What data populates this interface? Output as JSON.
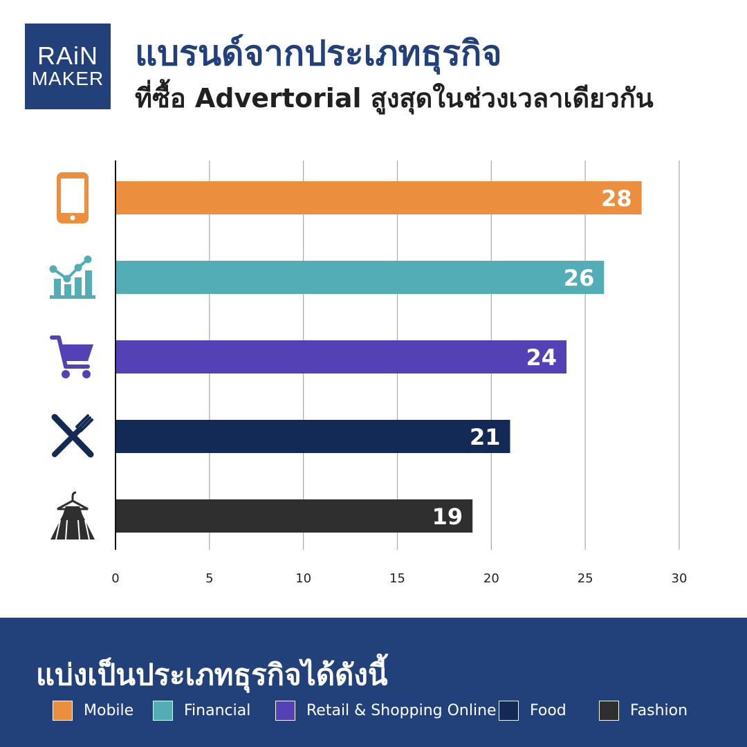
{
  "logo": {
    "line1": "RAiN",
    "line2": "MAKER"
  },
  "header": {
    "title": "แบรนด์จากประเภทธุรกิจ",
    "subtitle": "ที่ซื้อ Advertorial สูงสุดในช่วงเวลาเดียวกัน"
  },
  "chart_data": {
    "type": "bar",
    "orientation": "horizontal",
    "categories": [
      "Mobile",
      "Financial",
      "Retail & Shopping Online",
      "Food",
      "Fashion"
    ],
    "values": [
      28,
      26,
      24,
      21,
      19
    ],
    "value_labels": [
      "28",
      "26",
      "24",
      "21",
      "19"
    ],
    "colors": [
      "#eb8f3f",
      "#53adb6",
      "#5541b6",
      "#132a57",
      "#2f2f2f"
    ],
    "icons": [
      "mobile-phone-icon",
      "financial-chart-icon",
      "shopping-cart-icon",
      "fork-knife-icon",
      "dress-hanger-icon"
    ],
    "xlim": [
      0,
      30
    ],
    "xticks": [
      0,
      5,
      10,
      15,
      20,
      25,
      30
    ],
    "grid": true
  },
  "footer": {
    "title": "แบ่งเป็นประเภทธุรกิจได้ดังนี้",
    "legend": [
      {
        "label": "Mobile",
        "color": "#eb8f3f"
      },
      {
        "label": "Financial",
        "color": "#53adb6"
      },
      {
        "label": "Retail & Shopping Online",
        "color": "#5541b6"
      },
      {
        "label": "Food",
        "color": "#132a57"
      },
      {
        "label": "Fashion",
        "color": "#2f2f2f"
      }
    ]
  }
}
